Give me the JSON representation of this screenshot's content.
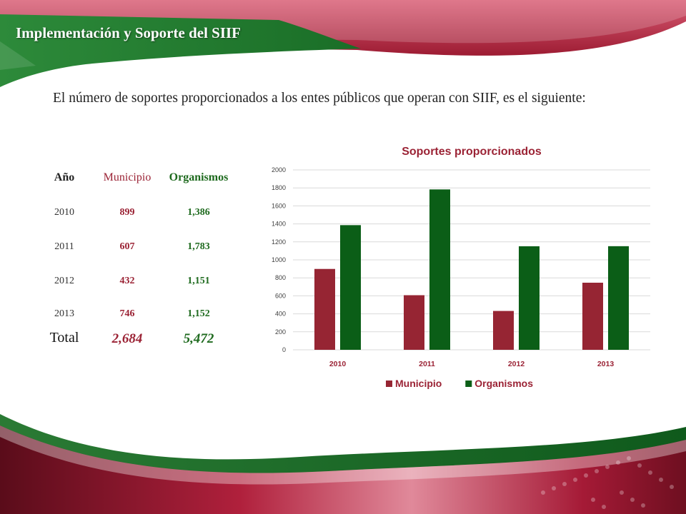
{
  "slide": {
    "title": "Implementación y Soporte del SIIF",
    "intro": "El número de soportes proporcionados a los entes públicos que operan con SIIF, es el siguiente:"
  },
  "colors": {
    "municipio": "#962533",
    "organismos": "#0b5e17",
    "red_text": "#9b2335",
    "green_text": "#1e6a1e",
    "banner_green": "#1f7a2c",
    "banner_red": "#b3233d"
  },
  "table": {
    "headers": {
      "year": "Año",
      "municipio": "Municipio",
      "organismos": "Organismos"
    },
    "rows": [
      {
        "year": "2010",
        "municipio": "899",
        "organismos": "1,386"
      },
      {
        "year": "2011",
        "municipio": "607",
        "organismos": "1,783"
      },
      {
        "year": "2012",
        "municipio": "432",
        "organismos": "1,151"
      },
      {
        "year": "2013",
        "municipio": "746",
        "organismos": "1,152"
      }
    ],
    "total": {
      "label": "Total",
      "municipio": "2,684",
      "organismos": "5,472"
    }
  },
  "chart_data": {
    "type": "bar",
    "title": "Soportes proporcionados",
    "categories": [
      "2010",
      "2011",
      "2012",
      "2013"
    ],
    "series": [
      {
        "name": "Municipio",
        "values": [
          899,
          607,
          432,
          746
        ],
        "color": "#962533"
      },
      {
        "name": "Organismos",
        "values": [
          1386,
          1783,
          1151,
          1152
        ],
        "color": "#0b5e17"
      }
    ],
    "ylim": [
      0,
      2000
    ],
    "yticks": [
      0,
      200,
      400,
      600,
      800,
      1000,
      1200,
      1400,
      1600,
      1800,
      2000
    ],
    "grid": true,
    "legend": "bottom"
  }
}
